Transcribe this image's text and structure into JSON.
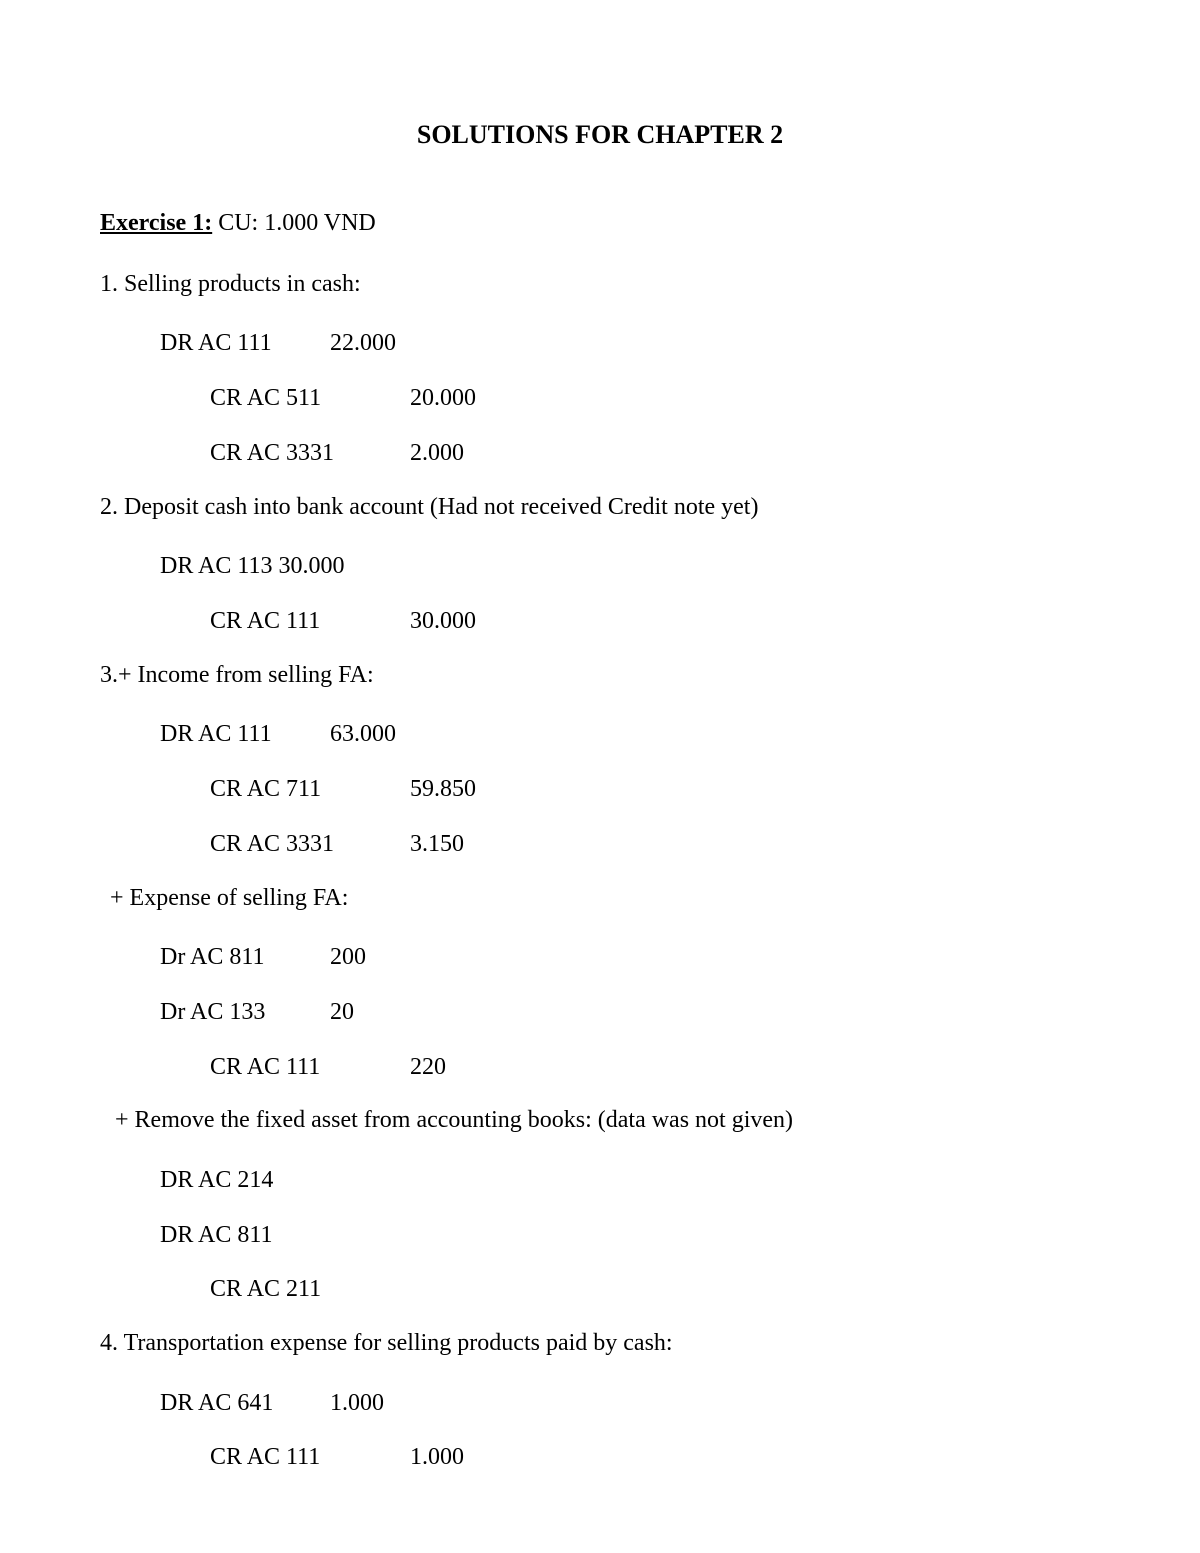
{
  "title": "SOLUTIONS FOR CHAPTER 2",
  "exercise": {
    "label": "Exercise 1:",
    "cu": " CU: 1.000 VND"
  },
  "items": {
    "i1": {
      "heading": "1. Selling products in cash:",
      "rows": [
        {
          "acct": "DR AC 111",
          "amt": "22.000",
          "indent": "1",
          "w": "n"
        },
        {
          "acct": "CR AC 511",
          "amt": "20.000",
          "indent": "2",
          "w": "w"
        },
        {
          "acct": "CR AC 3331",
          "amt": "2.000",
          "indent": "2",
          "w": "w"
        }
      ]
    },
    "i2": {
      "heading": "2. Deposit cash into bank account (Had not received Credit note yet)",
      "rows": [
        {
          "acct": "DR AC 113 30.000",
          "amt": "",
          "indent": "1",
          "w": "full"
        },
        {
          "acct": "CR AC 111",
          "amt": "30.000",
          "indent": "2",
          "w": "w"
        }
      ]
    },
    "i3": {
      "heading": "3.+  Income from selling FA:",
      "rows": [
        {
          "acct": "DR AC 111",
          "amt": "63.000",
          "indent": "1",
          "w": "n"
        },
        {
          "acct": "CR AC 711",
          "amt": "59.850",
          "indent": "2",
          "w": "w"
        },
        {
          "acct": "CR AC 3331",
          "amt": "3.150",
          "indent": "2",
          "w": "w"
        }
      ],
      "sub1": {
        "heading": " + Expense of selling FA:",
        "rows": [
          {
            "acct": "Dr AC 811",
            "amt": "200",
            "indent": "1",
            "w": "n"
          },
          {
            "acct": "Dr AC 133",
            "amt": "20",
            "indent": "1",
            "w": "n"
          },
          {
            "acct": "CR AC 111",
            "amt": "220",
            "indent": "2",
            "w": "w"
          }
        ]
      },
      "sub2": {
        "heading": "  + Remove the fixed asset from accounting books: (data was not given)",
        "rows": [
          {
            "acct": "DR AC 214",
            "amt": "",
            "indent": "1",
            "w": "full"
          },
          {
            "acct": "DR AC 811",
            "amt": "",
            "indent": "1",
            "w": "full"
          },
          {
            "acct": "CR AC 211",
            "amt": "",
            "indent": "2",
            "w": "full"
          }
        ]
      }
    },
    "i4": {
      "heading": "4. Transportation expense for selling products paid by cash:",
      "rows": [
        {
          "acct": "DR AC 641",
          "amt": "1.000",
          "indent": "1",
          "w": "n"
        },
        {
          "acct": "CR AC 111",
          "amt": "1.000",
          "indent": "2",
          "w": "w"
        }
      ]
    }
  }
}
